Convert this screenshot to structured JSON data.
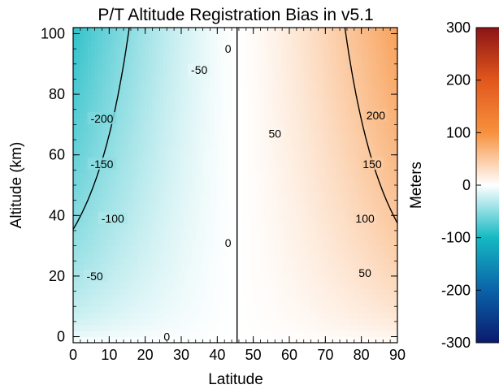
{
  "chart_data": {
    "type": "heatmap",
    "title": "P/T Altitude Registration Bias in v5.1",
    "xlabel": "Latitude",
    "ylabel": "Altitude (km)",
    "xlim": [
      0,
      90
    ],
    "ylim": [
      -2,
      102
    ],
    "x_ticks": [
      "0",
      "10",
      "20",
      "30",
      "40",
      "50",
      "60",
      "70",
      "80",
      "90"
    ],
    "y_ticks": [
      "0",
      "20",
      "40",
      "60",
      "80",
      "100"
    ],
    "colorbar": {
      "label": "Meters",
      "range": [
        -300,
        300
      ],
      "ticks": [
        "300",
        "200",
        "100",
        "0",
        "-100",
        "-200",
        "-300"
      ],
      "colors": [
        "#0b1a6e",
        "#0a63a8",
        "#15b9c3",
        "#ffffff",
        "#f7913e",
        "#e2571c",
        "#8c1416"
      ]
    },
    "zero_latitude": 45.5,
    "contour_levels": [
      -200,
      -150,
      -100,
      -50,
      0,
      50,
      100,
      150,
      200
    ],
    "contour_labels": [
      {
        "text": "-200",
        "x": 8,
        "y": 72
      },
      {
        "text": "-150",
        "x": 8,
        "y": 57
      },
      {
        "text": "-100",
        "x": 11,
        "y": 39
      },
      {
        "text": "-50",
        "x": 6,
        "y": 20
      },
      {
        "text": "-50",
        "x": 35,
        "y": 88
      },
      {
        "text": "0",
        "x": 43,
        "y": 95
      },
      {
        "text": "0",
        "x": 43,
        "y": 31
      },
      {
        "text": "0",
        "x": 26,
        "y": 0
      },
      {
        "text": "50",
        "x": 56,
        "y": 67
      },
      {
        "text": "50",
        "x": 81,
        "y": 21
      },
      {
        "text": "100",
        "x": 81,
        "y": 39
      },
      {
        "text": "150",
        "x": 83,
        "y": 57
      },
      {
        "text": "200",
        "x": 84,
        "y": 73
      }
    ]
  }
}
